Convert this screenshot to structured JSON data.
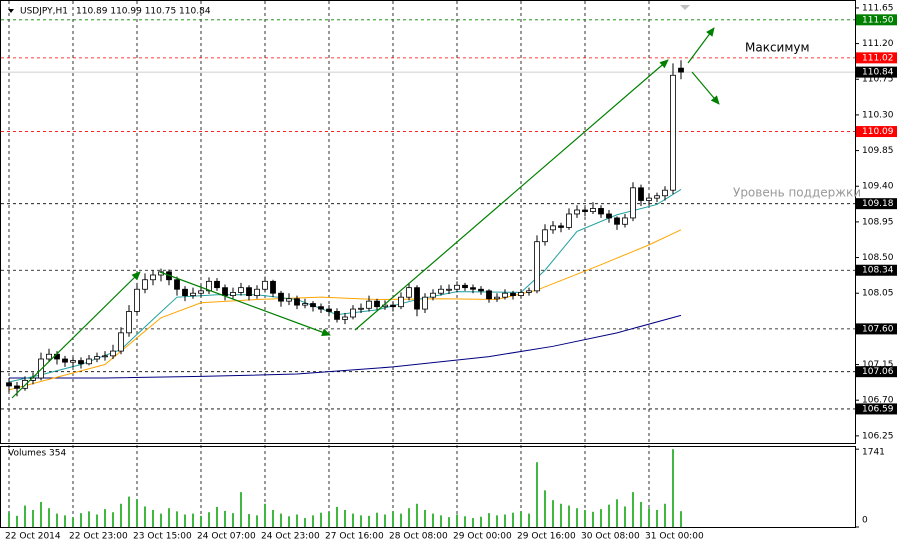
{
  "chart_data": [
    {
      "type": "candlestick",
      "title": "USDJPY,H1",
      "subtitle": "110.89 110.99 110.75 110.84",
      "categories": [
        "22 Oct 2014",
        null,
        null,
        null,
        null,
        null,
        null,
        null,
        "22 Oct 23:00",
        null,
        null,
        null,
        null,
        null,
        null,
        null,
        "23 Oct 15:00",
        null,
        null,
        null,
        null,
        null,
        null,
        null,
        "24 Oct 07:00",
        null,
        null,
        null,
        null,
        null,
        null,
        null,
        "24 Oct 23:00",
        null,
        null,
        null,
        null,
        null,
        null,
        null,
        "27 Oct 16:00",
        null,
        null,
        null,
        null,
        null,
        null,
        null,
        "28 Oct 08:00",
        null,
        null,
        null,
        null,
        null,
        null,
        null,
        "29 Oct 00:00",
        null,
        null,
        null,
        null,
        null,
        null,
        null,
        "29 Oct 16:00",
        null,
        null,
        null,
        null,
        null,
        null,
        null,
        "30 Oct 08:00",
        null,
        null,
        null,
        null,
        null,
        null,
        null,
        "31 Oct 00:00",
        null,
        null,
        null,
        null
      ],
      "ohlc": [
        [
          106.92,
          106.98,
          106.8,
          106.88
        ],
        [
          106.88,
          106.93,
          106.75,
          106.85
        ],
        [
          106.85,
          107.0,
          106.82,
          106.95
        ],
        [
          106.95,
          107.05,
          106.9,
          106.98
        ],
        [
          106.98,
          107.3,
          106.95,
          107.22
        ],
        [
          107.22,
          107.35,
          107.18,
          107.28
        ],
        [
          107.28,
          107.32,
          107.15,
          107.22
        ],
        [
          107.22,
          107.26,
          107.12,
          107.18
        ],
        [
          107.18,
          107.25,
          107.12,
          107.2
        ],
        [
          107.2,
          107.24,
          107.1,
          107.16
        ],
        [
          107.16,
          107.27,
          107.14,
          107.22
        ],
        [
          107.22,
          107.3,
          107.18,
          107.25
        ],
        [
          107.25,
          107.32,
          107.2,
          107.26
        ],
        [
          107.26,
          107.4,
          107.22,
          107.32
        ],
        [
          107.32,
          107.62,
          107.28,
          107.55
        ],
        [
          107.55,
          107.9,
          107.5,
          107.82
        ],
        [
          107.82,
          108.18,
          107.78,
          108.1
        ],
        [
          108.1,
          108.3,
          108.05,
          108.22
        ],
        [
          108.22,
          108.34,
          108.15,
          108.28
        ],
        [
          108.28,
          108.36,
          108.2,
          108.32
        ],
        [
          108.32,
          108.35,
          108.15,
          108.22
        ],
        [
          108.22,
          108.26,
          108.02,
          108.1
        ],
        [
          108.1,
          108.14,
          107.95,
          108.02
        ],
        [
          108.02,
          108.12,
          107.98,
          108.05
        ],
        [
          108.05,
          108.15,
          108.0,
          108.08
        ],
        [
          108.08,
          108.25,
          108.04,
          108.2
        ],
        [
          108.2,
          108.24,
          108.08,
          108.12
        ],
        [
          108.12,
          108.16,
          107.96,
          108.02
        ],
        [
          108.02,
          108.12,
          107.98,
          108.06
        ],
        [
          108.06,
          108.18,
          108.02,
          108.12
        ],
        [
          108.12,
          108.15,
          107.96,
          108.02
        ],
        [
          108.02,
          108.15,
          107.98,
          108.1
        ],
        [
          108.1,
          108.26,
          108.06,
          108.2
        ],
        [
          108.2,
          108.22,
          108.0,
          108.05
        ],
        [
          108.05,
          108.08,
          107.88,
          107.95
        ],
        [
          107.95,
          108.05,
          107.9,
          107.98
        ],
        [
          107.98,
          108.02,
          107.85,
          107.9
        ],
        [
          107.9,
          107.98,
          107.86,
          107.92
        ],
        [
          107.92,
          107.95,
          107.82,
          107.88
        ],
        [
          107.88,
          107.92,
          107.8,
          107.85
        ],
        [
          107.85,
          107.9,
          107.76,
          107.82
        ],
        [
          107.82,
          107.86,
          107.68,
          107.72
        ],
        [
          107.72,
          107.8,
          107.66,
          107.75
        ],
        [
          107.75,
          107.9,
          107.72,
          107.85
        ],
        [
          107.85,
          107.92,
          107.8,
          107.86
        ],
        [
          107.86,
          108.02,
          107.82,
          107.95
        ],
        [
          107.95,
          107.98,
          107.84,
          107.88
        ],
        [
          107.88,
          107.96,
          107.84,
          107.9
        ],
        [
          107.9,
          107.94,
          107.82,
          107.88
        ],
        [
          107.88,
          108.06,
          107.85,
          108.0
        ],
        [
          108.0,
          108.18,
          107.96,
          108.12
        ],
        [
          108.12,
          108.15,
          107.76,
          107.85
        ],
        [
          107.85,
          108.05,
          107.8,
          108.0
        ],
        [
          108.0,
          108.1,
          107.96,
          108.05
        ],
        [
          108.05,
          108.15,
          108.02,
          108.1
        ],
        [
          108.1,
          108.16,
          108.04,
          108.1
        ],
        [
          108.1,
          108.2,
          108.06,
          108.15
        ],
        [
          108.15,
          108.18,
          108.08,
          108.12
        ],
        [
          108.12,
          108.16,
          108.05,
          108.1
        ],
        [
          108.1,
          108.14,
          108.03,
          108.08
        ],
        [
          108.08,
          108.1,
          107.93,
          107.98
        ],
        [
          107.98,
          108.05,
          107.94,
          108.0
        ],
        [
          108.0,
          108.1,
          107.97,
          108.05
        ],
        [
          108.05,
          108.08,
          107.97,
          108.02
        ],
        [
          108.02,
          108.1,
          107.98,
          108.06
        ],
        [
          108.06,
          108.12,
          108.02,
          108.08
        ],
        [
          108.08,
          108.78,
          108.05,
          108.7
        ],
        [
          108.7,
          108.92,
          108.65,
          108.85
        ],
        [
          108.85,
          108.96,
          108.8,
          108.9
        ],
        [
          108.9,
          108.94,
          108.82,
          108.88
        ],
        [
          108.88,
          109.12,
          108.85,
          109.05
        ],
        [
          109.05,
          109.16,
          109.0,
          109.1
        ],
        [
          109.1,
          109.14,
          109.02,
          109.08
        ],
        [
          109.08,
          109.2,
          109.05,
          109.12
        ],
        [
          109.12,
          109.16,
          109.0,
          109.05
        ],
        [
          109.05,
          109.1,
          108.94,
          109.0
        ],
        [
          109.0,
          109.02,
          108.85,
          108.92
        ],
        [
          108.92,
          109.05,
          108.88,
          109.0
        ],
        [
          109.0,
          109.45,
          108.96,
          109.38
        ],
        [
          109.38,
          109.42,
          109.15,
          109.22
        ],
        [
          109.22,
          109.3,
          109.16,
          109.25
        ],
        [
          109.25,
          109.32,
          109.2,
          109.28
        ],
        [
          109.28,
          109.4,
          109.22,
          109.35
        ],
        [
          109.35,
          110.95,
          109.3,
          110.8
        ],
        [
          110.89,
          110.99,
          110.75,
          110.84
        ]
      ],
      "indicators": [
        {
          "color": "#000080",
          "x": [
            0,
            12,
            24,
            36,
            48,
            60,
            68,
            76,
            84
          ],
          "values": [
            106.98,
            106.98,
            107.0,
            107.03,
            107.12,
            107.25,
            107.38,
            107.55,
            107.77
          ]
        },
        {
          "color": "#ffa500",
          "x": [
            0,
            12,
            19,
            24,
            31,
            39,
            46,
            54,
            61,
            66,
            74,
            80,
            84
          ],
          "values": [
            106.83,
            107.15,
            107.74,
            107.93,
            107.97,
            108.0,
            107.97,
            107.98,
            107.97,
            108.09,
            108.41,
            108.66,
            108.85
          ]
        },
        {
          "color": "#20a0a0",
          "x": [
            0,
            4,
            9,
            14,
            18,
            21,
            26,
            31,
            36,
            41,
            46,
            51,
            56,
            64,
            67,
            71,
            76,
            81,
            84
          ],
          "values": [
            106.93,
            107.02,
            107.15,
            107.34,
            107.72,
            108.0,
            108.03,
            108.03,
            107.97,
            107.78,
            107.84,
            107.97,
            108.07,
            108.06,
            108.34,
            108.83,
            109.04,
            109.17,
            109.36
          ]
        }
      ],
      "levels": [
        {
          "value": 111.5,
          "label": "111.50",
          "color": "#008000",
          "box": "#008000",
          "style": "dashed"
        },
        {
          "value": 111.02,
          "label": "111.02",
          "color": "#ff0000",
          "box": "#ff0000",
          "style": "dashed"
        },
        {
          "value": 110.84,
          "label": "110.84",
          "color": "#c0c0c0",
          "box": "#000000",
          "style": "solid"
        },
        {
          "value": 110.09,
          "label": "110.09",
          "color": "#ff0000",
          "box": "#ff0000",
          "style": "dashed"
        },
        {
          "value": 109.18,
          "label": "109.18",
          "color": "#000000",
          "box": "#000000",
          "style": "dashed"
        },
        {
          "value": 108.34,
          "label": "108.34",
          "color": "#000000",
          "box": "#000000",
          "style": "dashed"
        },
        {
          "value": 107.6,
          "label": "107.60",
          "color": "#000000",
          "box": "#000000",
          "style": "dashed"
        },
        {
          "value": 107.06,
          "label": "107.06",
          "color": "#000000",
          "box": "#000000",
          "style": "dashed"
        },
        {
          "value": 106.59,
          "label": "106.59",
          "color": "#000000",
          "box": "#000000",
          "style": "dashed"
        }
      ],
      "annotations": [
        "Максимум",
        "Уровень поддержки"
      ],
      "ylim": [
        106.16,
        111.75
      ],
      "yticks": [
        111.65,
        {
          "value": 111.2,
          "label": "111.20"
        },
        110.75,
        {
          "value": 110.3,
          "label": "110.30"
        },
        109.85,
        {
          "value": 109.4,
          "label": "109.40"
        },
        108.95,
        {
          "value": 108.5,
          "label": "108.50"
        },
        108.05,
        {
          "value": 107.6,
          "label": "107.60"
        },
        107.15,
        {
          "value": 106.7,
          "label": "106.70"
        },
        106.25
      ],
      "grid": true
    },
    {
      "type": "bar",
      "title": "Volumes 354",
      "color": "#00a000",
      "values": [
        320,
        250,
        480,
        380,
        560,
        420,
        300,
        260,
        220,
        310,
        350,
        280,
        400,
        330,
        520,
        680,
        620,
        460,
        380,
        300,
        420,
        350,
        280,
        300,
        250,
        330,
        450,
        360,
        310,
        780,
        290,
        260,
        520,
        380,
        300,
        240,
        280,
        200,
        260,
        320,
        340,
        450,
        380,
        300,
        260,
        250,
        320,
        280,
        350,
        300,
        420,
        520,
        380,
        300,
        260,
        220,
        280,
        240,
        200,
        230,
        310,
        260,
        280,
        320,
        350,
        300,
        1450,
        820,
        600,
        520,
        480,
        420,
        380,
        340,
        400,
        500,
        620,
        460,
        780,
        560,
        420,
        380,
        520,
        1741,
        354
      ],
      "ylim": [
        0,
        1790
      ],
      "yticks": [
        0,
        1741
      ]
    }
  ]
}
